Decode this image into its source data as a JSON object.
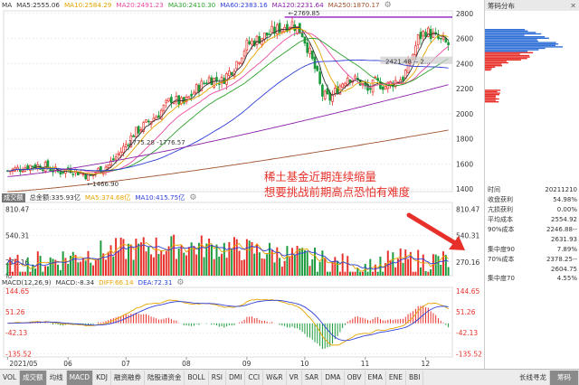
{
  "price_legend": {
    "name": "MA",
    "items": [
      {
        "label": "MA5:2555.06",
        "color": "#333333"
      },
      {
        "label": "MA10:2584.29",
        "color": "#e5a400"
      },
      {
        "label": "MA20:2491.23",
        "color": "#e84aa0"
      },
      {
        "label": "MA30:2410.30",
        "color": "#2ca02c"
      },
      {
        "label": "MA60:2383.16",
        "color": "#2f3fd6"
      },
      {
        "label": "MA120:2231.64",
        "color": "#8b1fa8"
      },
      {
        "label": "MA250:1870.17",
        "color": "#a0522d"
      }
    ]
  },
  "volume_legend": {
    "name": "成交额",
    "items": [
      {
        "label": "总金额:335.93亿",
        "color": "#333333"
      },
      {
        "label": "MA5:374.68亿",
        "color": "#e5a400"
      },
      {
        "label": "MA10:415.75亿",
        "color": "#2f3fd6"
      }
    ]
  },
  "macd_legend": {
    "name": "MACD(12,26,9)",
    "items": [
      {
        "label": "MACD:-8.34",
        "color": "#333333"
      },
      {
        "label": "DIFF:66.14",
        "color": "#e5a400"
      },
      {
        "label": "DEA:72.31",
        "color": "#2f3fd6"
      }
    ]
  },
  "annotation": {
    "line1": "稀土基金近期连续缩量",
    "line2": "想要挑战前期高点恐怕有难度"
  },
  "price_markers": {
    "high": "2769.85",
    "low": "1466.90",
    "mid": "1775.28 -1776.57",
    "right": "2421.48 -- 2..."
  },
  "right_panel": {
    "title": "筹码分布",
    "stats": [
      {
        "k": "时间",
        "v": "20211210"
      },
      {
        "k": "收盘获利",
        "v": "54.98%"
      },
      {
        "k": "亢损获利",
        "v": "0.00%"
      },
      {
        "k": "平均成本",
        "v": "2554.92"
      },
      {
        "k": "90%成本",
        "v": "2246.88--"
      },
      {
        "k": "",
        "v": "2631.93"
      },
      {
        "k": "集中度90",
        "v": "7.89%"
      },
      {
        "k": "70%成本",
        "v": "2378.25--"
      },
      {
        "k": "",
        "v": "2604.75"
      },
      {
        "k": "集中度70",
        "v": "4.55%"
      }
    ]
  },
  "bottom_tabs": [
    "VOL",
    "成交额",
    "均线",
    "MACD",
    "KDJ",
    "融资融券",
    "陆股通资金",
    "BOLL",
    "RSI",
    "DMI",
    "CCI",
    "W&R",
    "VR",
    "SAR",
    "DMA",
    "OBV",
    "EMA",
    "ENE",
    "BBI"
  ],
  "bottom_active": [
    "成交额",
    "MACD"
  ],
  "bottom_right": "长线寻龙",
  "bottom_btn": "筹码",
  "chart_data": [
    {
      "type": "candlestick",
      "title": "",
      "x_months": [
        "2021/05",
        "06",
        "07",
        "08",
        "09",
        "10",
        "11",
        "12"
      ],
      "y_ticks": [
        1400,
        1600,
        1800,
        2000,
        2200,
        2400,
        2600,
        2800
      ],
      "ylim": [
        1380,
        2820
      ],
      "high": 2769.85,
      "low": 1466.9,
      "close_anchors": [
        [
          0,
          1545
        ],
        [
          5,
          1565
        ],
        [
          10,
          1590
        ],
        [
          15,
          1580
        ],
        [
          20,
          1535
        ],
        [
          25,
          1560
        ],
        [
          30,
          1520
        ],
        [
          33,
          1500
        ],
        [
          35,
          1540
        ],
        [
          40,
          1590
        ],
        [
          45,
          1700
        ],
        [
          50,
          1840
        ],
        [
          55,
          1920
        ],
        [
          60,
          2000
        ],
        [
          65,
          2120
        ],
        [
          70,
          2080
        ],
        [
          75,
          2200
        ],
        [
          80,
          2280
        ],
        [
          85,
          2260
        ],
        [
          90,
          2380
        ],
        [
          95,
          2550
        ],
        [
          100,
          2600
        ],
        [
          105,
          2650
        ],
        [
          110,
          2700
        ],
        [
          113,
          2720
        ],
        [
          117,
          2640
        ],
        [
          120,
          2480
        ],
        [
          123,
          2300
        ],
        [
          125,
          2150
        ],
        [
          128,
          2120
        ],
        [
          131,
          2200
        ],
        [
          135,
          2300
        ],
        [
          140,
          2250
        ],
        [
          143,
          2180
        ],
        [
          146,
          2250
        ],
        [
          150,
          2220
        ],
        [
          154,
          2260
        ],
        [
          157,
          2290
        ],
        [
          160,
          2420
        ],
        [
          163,
          2600
        ],
        [
          166,
          2660
        ],
        [
          169,
          2620
        ],
        [
          172,
          2580
        ],
        [
          175,
          2550
        ]
      ]
    },
    {
      "type": "bar",
      "title": "",
      "y_ticks": [
        270.16,
        540.31,
        810.47
      ],
      "ylim": [
        130,
        880
      ],
      "unit": "亿"
    },
    {
      "type": "bar",
      "title": "",
      "y_ticks": [
        -135.52,
        -42.13,
        51.26,
        144.65
      ],
      "ylim": [
        -150,
        160
      ],
      "series": [
        "MACD",
        "DIFF",
        "DEA"
      ]
    }
  ]
}
